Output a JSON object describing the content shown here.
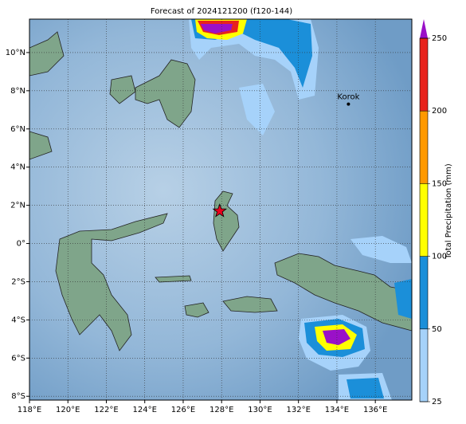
{
  "title": "Forecast of 2024121200 (f120-144)",
  "map": {
    "lonlim": [
      118,
      137.9
    ],
    "latlim": [
      -8.2,
      11.75
    ],
    "lonticks": [
      {
        "value": 118,
        "label": "118°E"
      },
      {
        "value": 120,
        "label": "120°E"
      },
      {
        "value": 122,
        "label": "122°E"
      },
      {
        "value": 124,
        "label": "124°E"
      },
      {
        "value": 126,
        "label": "126°E"
      },
      {
        "value": 128,
        "label": "128°E"
      },
      {
        "value": 130,
        "label": "130°E"
      },
      {
        "value": 132,
        "label": "132°E"
      },
      {
        "value": 134,
        "label": "134°E"
      },
      {
        "value": 136,
        "label": "136°E"
      }
    ],
    "latticks": [
      {
        "value": -8,
        "label": "8°S"
      },
      {
        "value": -6,
        "label": "6°S"
      },
      {
        "value": -4,
        "label": "4°S"
      },
      {
        "value": -2,
        "label": "2°S"
      },
      {
        "value": 0,
        "label": "0°"
      },
      {
        "value": 2,
        "label": "2°N"
      },
      {
        "value": 4,
        "label": "4°N"
      },
      {
        "value": 6,
        "label": "6°N"
      },
      {
        "value": 8,
        "label": "8°N"
      },
      {
        "value": 10,
        "label": "10°N"
      }
    ],
    "places": [
      {
        "name": "Korok",
        "lon": 134.6,
        "lat": 7.3
      }
    ],
    "storm": {
      "lon": 127.9,
      "lat": 1.7
    }
  },
  "colorbar": {
    "label": "Total Precipitation (mm)",
    "ticks": [
      25,
      50,
      100,
      150,
      200,
      250
    ],
    "colors": [
      "#a6d2fa",
      "#1b8fd9",
      "#ffff00",
      "#ff9900",
      "#e8231c"
    ],
    "extend_color": "#9a10c8"
  }
}
